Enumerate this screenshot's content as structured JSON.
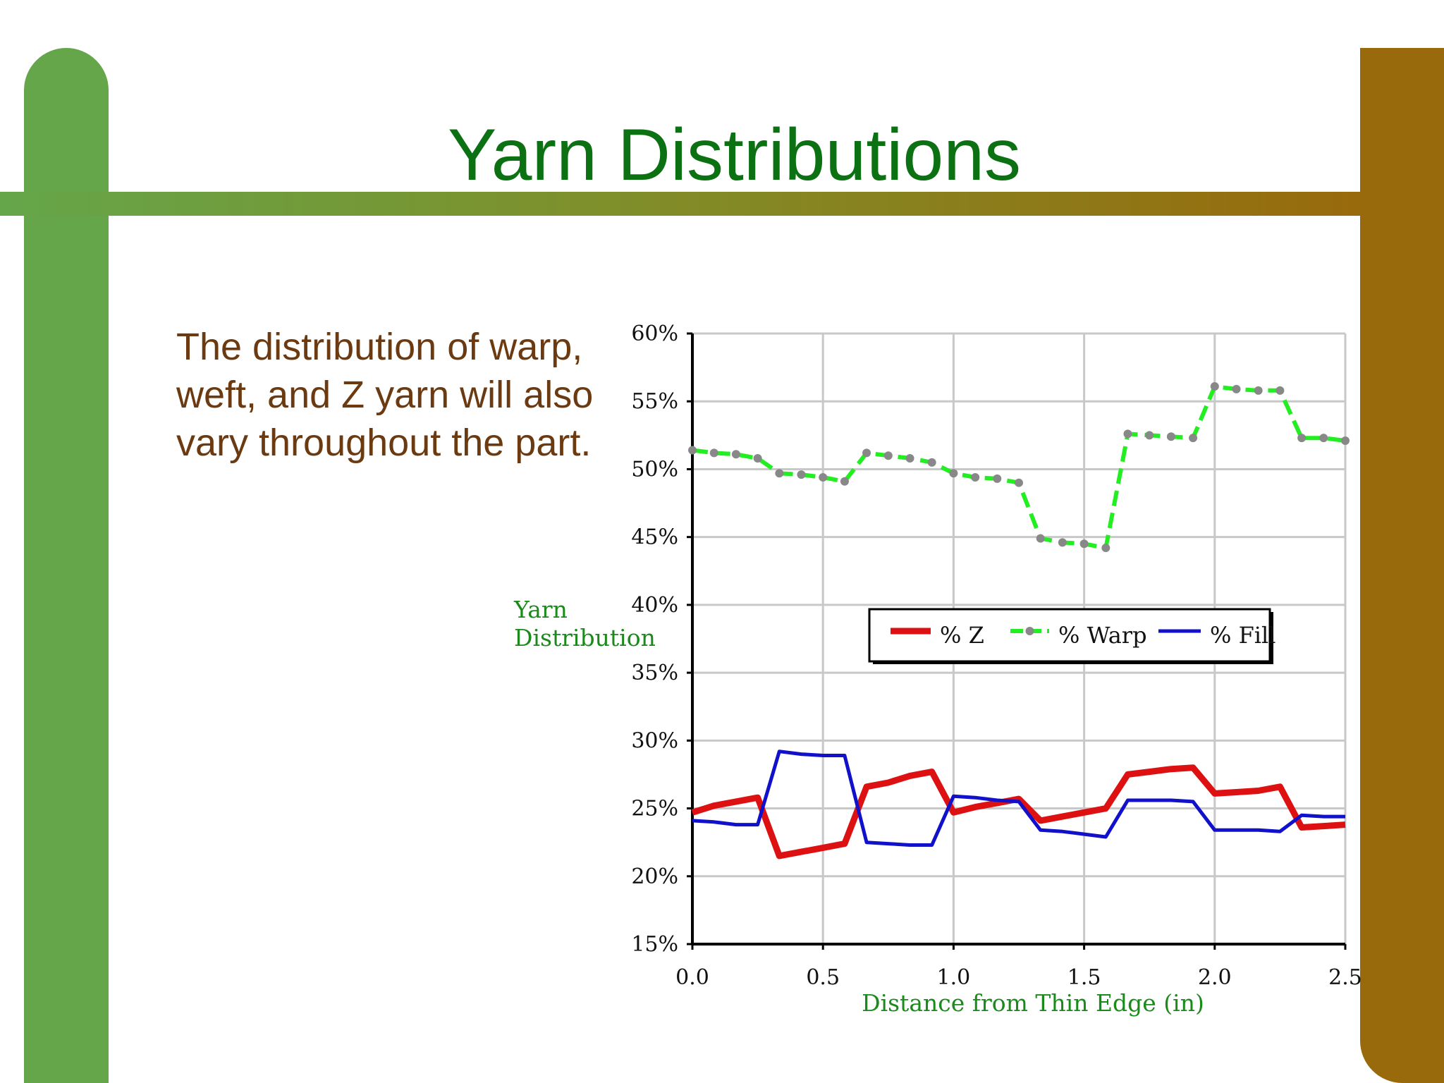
{
  "slide": {
    "title": "Yarn Distributions",
    "body": "The distribution of warp, weft, and Z yarn will also vary throughout the part."
  },
  "chart_data": {
    "type": "line",
    "title": "",
    "xlabel": "Distance from Thin Edge (in)",
    "ylabel": "Yarn Distribution",
    "xlim": [
      0,
      2.5
    ],
    "ylim": [
      15,
      60
    ],
    "x_ticks": [
      "0.0",
      "0.5",
      "1.0",
      "1.5",
      "2.0",
      "2.5"
    ],
    "y_ticks": [
      "15%",
      "20%",
      "25%",
      "30%",
      "35%",
      "40%",
      "45%",
      "50%",
      "55%",
      "60%"
    ],
    "grid": true,
    "legend": "inside-center",
    "x": [
      0.0,
      0.083,
      0.167,
      0.25,
      0.333,
      0.417,
      0.5,
      0.583,
      0.667,
      0.75,
      0.833,
      0.917,
      1.0,
      1.083,
      1.167,
      1.25,
      1.333,
      1.417,
      1.5,
      1.583,
      1.667,
      1.75,
      1.833,
      1.917,
      2.0,
      2.083,
      2.167,
      2.25,
      2.333,
      2.417,
      2.5
    ],
    "series": [
      {
        "name": "% Z",
        "color": "#dd1111",
        "style": "thick",
        "values": [
          24.7,
          25.2,
          25.5,
          25.8,
          21.5,
          21.8,
          22.1,
          22.4,
          26.6,
          26.9,
          27.4,
          27.7,
          24.7,
          25.1,
          25.4,
          25.7,
          24.1,
          24.4,
          24.7,
          25.0,
          27.5,
          27.7,
          27.9,
          28.0,
          26.1,
          26.2,
          26.3,
          26.6,
          23.6,
          23.7,
          23.8
        ]
      },
      {
        "name": "% Warp",
        "color": "#22ee22",
        "style": "dashed-markers",
        "values": [
          51.4,
          51.2,
          51.1,
          50.8,
          49.7,
          49.6,
          49.4,
          49.1,
          51.2,
          51.0,
          50.8,
          50.5,
          49.7,
          49.4,
          49.3,
          49.0,
          44.9,
          44.6,
          44.5,
          44.2,
          52.6,
          52.5,
          52.4,
          52.3,
          56.1,
          55.9,
          55.8,
          55.8,
          52.3,
          52.3,
          52.1
        ]
      },
      {
        "name": "% Fill",
        "color": "#1111cc",
        "style": "solid",
        "values": [
          24.1,
          24.0,
          23.8,
          23.8,
          29.2,
          29.0,
          28.9,
          28.9,
          22.5,
          22.4,
          22.3,
          22.3,
          25.9,
          25.8,
          25.6,
          25.5,
          23.4,
          23.3,
          23.1,
          22.9,
          25.6,
          25.6,
          25.6,
          25.5,
          23.4,
          23.4,
          23.4,
          23.3,
          24.5,
          24.4,
          24.4
        ]
      }
    ]
  },
  "colors": {
    "title": "#0c7112",
    "body_text": "#6b3a10",
    "axis_label": "#1a8a1a",
    "left_bar": "#65a64a",
    "right_bar": "#986a0c",
    "marker": "#888888",
    "grid": "#c8c8c8"
  }
}
